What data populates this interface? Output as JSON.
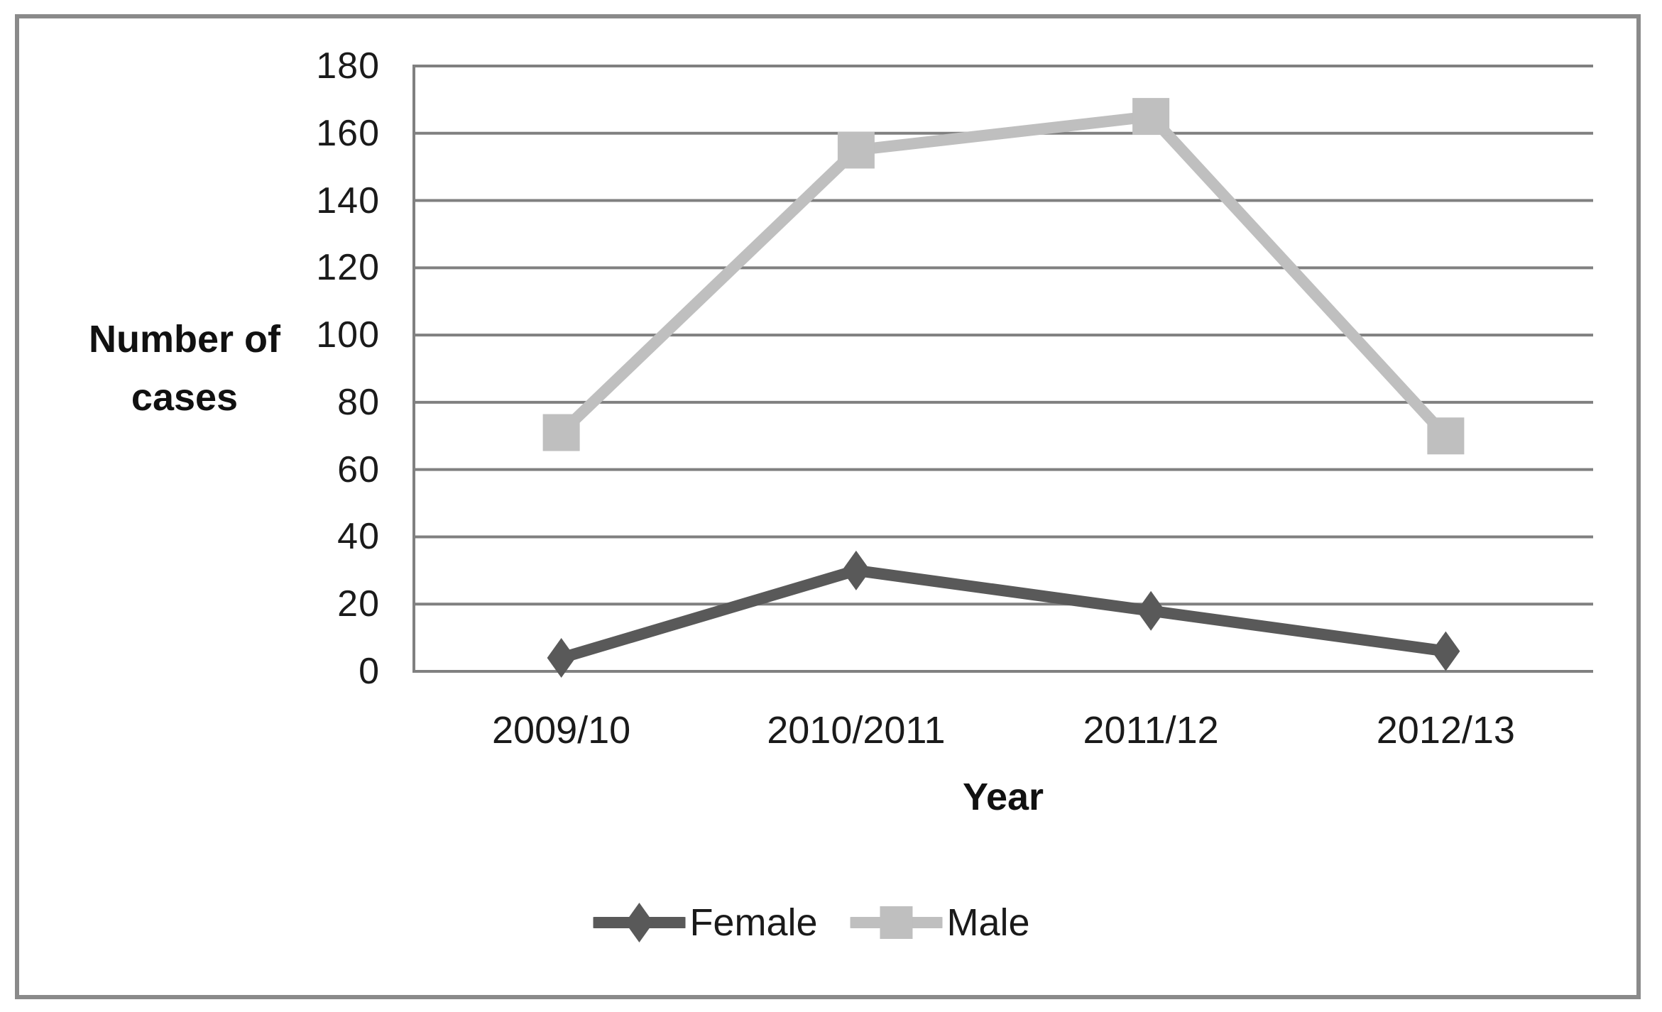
{
  "figure": {
    "background": "#ffffff",
    "border_color": "#8a8a8a"
  },
  "chart_data": {
    "type": "line",
    "title": "",
    "categories": [
      "2009/10",
      "2010/2011",
      "2011/12",
      "2012/13"
    ],
    "series": [
      {
        "name": "Female",
        "values": [
          4,
          30,
          18,
          6
        ],
        "color": "#595959",
        "marker": "diamond"
      },
      {
        "name": "Male",
        "values": [
          71,
          155,
          165,
          70
        ],
        "color": "#bfbfbf",
        "marker": "square"
      }
    ],
    "xlabel": "Year",
    "ylabel": "Number of cases",
    "ylabel_lines": [
      "Number of",
      "cases"
    ],
    "ylim": [
      0,
      180
    ],
    "ytick_step": 20,
    "yticks": [
      180,
      160,
      140,
      120,
      100,
      80,
      60,
      40,
      20,
      0
    ],
    "grid": "horizontal",
    "gridline_color": "#808080",
    "axis_line_color": "#808080",
    "axis_text_color": "#1a1a1a",
    "legend_position": "bottom-center",
    "legend_labels": [
      "Female",
      "Male"
    ]
  }
}
